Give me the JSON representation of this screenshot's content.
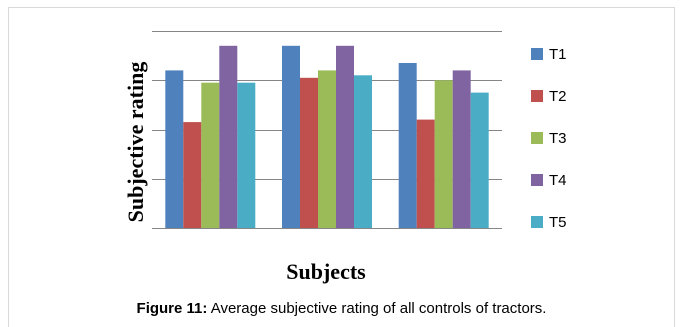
{
  "chart_data": {
    "type": "bar",
    "categories": [
      "",
      "",
      ""
    ],
    "series": [
      {
        "name": "T1",
        "color": "#4f81bd",
        "values": [
          3.2,
          3.7,
          3.35
        ]
      },
      {
        "name": "T2",
        "color": "#c0504d",
        "values": [
          2.15,
          3.05,
          2.2
        ]
      },
      {
        "name": "T3",
        "color": "#9bbb59",
        "values": [
          2.95,
          3.2,
          3.0
        ]
      },
      {
        "name": "T4",
        "color": "#8064a2",
        "values": [
          3.7,
          3.7,
          3.2
        ]
      },
      {
        "name": "T5",
        "color": "#4bacc6",
        "values": [
          2.95,
          3.1,
          2.75
        ]
      }
    ],
    "ylim": [
      0,
      4
    ],
    "yticks": [
      0,
      1,
      2,
      3,
      4
    ],
    "ytick_labels_shown": false,
    "grid": true,
    "legend_position": "right",
    "xlabel": "Subjects",
    "ylabel": "Subjective rating"
  },
  "caption": {
    "label": "Figure 11:",
    "text": " Average subjective rating of all  controls of tractors."
  }
}
